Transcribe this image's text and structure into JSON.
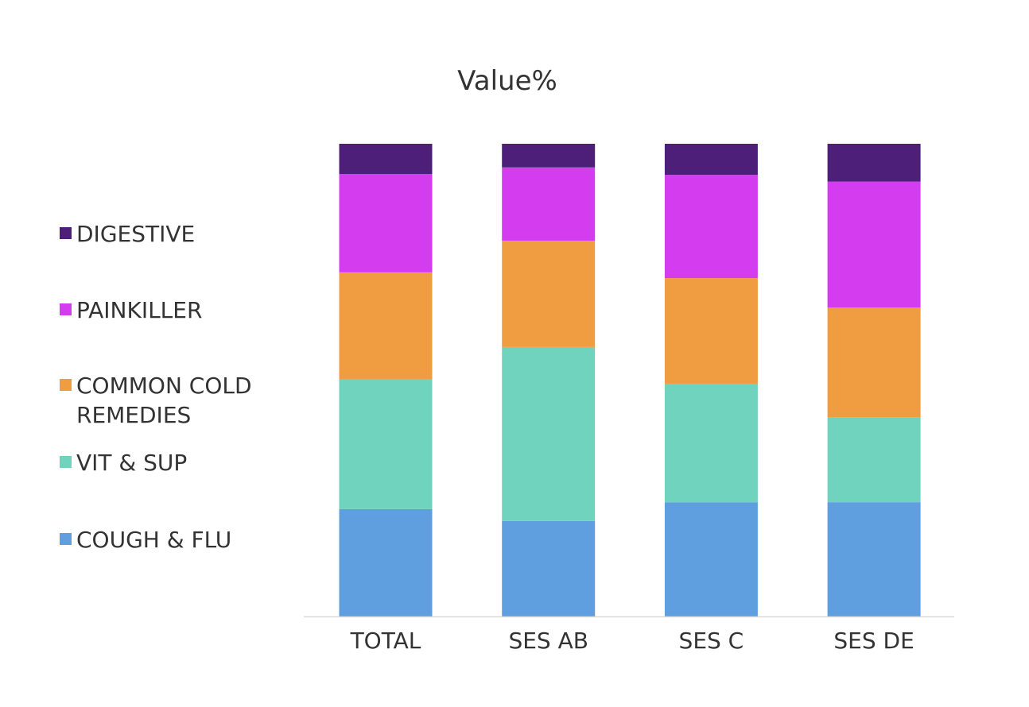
{
  "chart_data": {
    "type": "bar",
    "stacked": true,
    "percent_stacked": true,
    "title": "Value%",
    "xlabel": "",
    "ylabel": "",
    "ylim": [
      0,
      100
    ],
    "grid": false,
    "legend_position": "left",
    "categories": [
      "TOTAL",
      "SES AB",
      "SES C",
      "SES DE"
    ],
    "series": [
      {
        "name": "COUGH & FLU",
        "color": "#609FDF",
        "values": [
          22.7,
          20.2,
          24.2,
          24.2
        ]
      },
      {
        "name": "VIT & SUP",
        "color": "#6FD3BE",
        "values": [
          27.4,
          36.8,
          25.2,
          18.0
        ]
      },
      {
        "name": "COMMON COLD REMEDIES",
        "color": "#F09C41",
        "values": [
          22.7,
          22.5,
          22.4,
          23.2
        ]
      },
      {
        "name": "PAINKILLER",
        "color": "#D43CF0",
        "values": [
          20.8,
          15.5,
          21.9,
          26.7
        ]
      },
      {
        "name": "DIGESTIVE",
        "color": "#4D1F78",
        "values": [
          6.4,
          5.0,
          6.6,
          8.0
        ]
      }
    ]
  },
  "legend_order": [
    "DIGESTIVE",
    "PAINKILLER",
    "COMMON COLD REMEDIES",
    "VIT & SUP",
    "COUGH & FLU"
  ],
  "legend_lines": {
    "DIGESTIVE": "DIGESTIVE",
    "PAINKILLER": "PAINKILLER",
    "COMMON COLD REMEDIES": "COMMON COLD\nREMEDIES",
    "VIT & SUP": "VIT & SUP",
    "COUGH & FLU": "COUGH & FLU"
  },
  "axis_color": "#D9D9D9"
}
